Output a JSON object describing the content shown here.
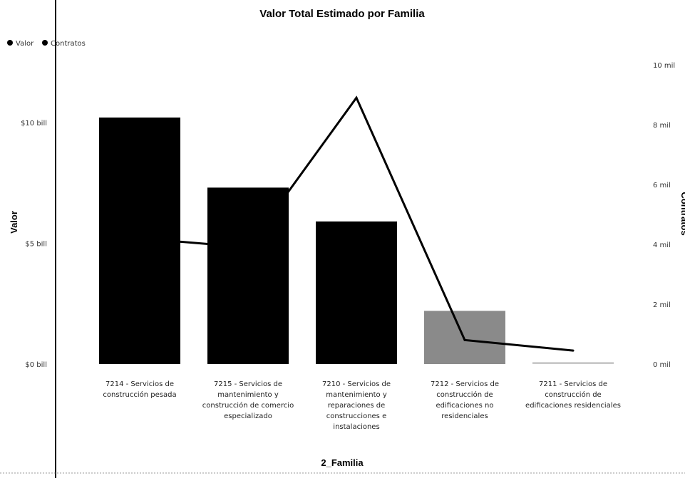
{
  "chart_data": {
    "type": "bar",
    "title": "Valor Total Estimado por Familia",
    "xlabel": "2_Familia",
    "ylabel": "Valor",
    "y2label": "Contratos",
    "legend": {
      "placement": "top-left",
      "items": [
        {
          "label": "Valor",
          "color": "#000000"
        },
        {
          "label": "Contratos",
          "color": "#000000"
        }
      ]
    },
    "categories": [
      [
        "7214 - Servicios de",
        "construcción pesada"
      ],
      [
        "7215 - Servicios de",
        "mantenimiento y",
        "construcción de comercio",
        "especializado"
      ],
      [
        "7210 - Servicios de",
        "mantenimiento y",
        "reparaciones de",
        "construcciones e",
        "instalaciones"
      ],
      [
        "7212 - Servicios de",
        "construcción de",
        "edificaciones no",
        "residenciales"
      ],
      [
        "7211 - Servicios de",
        "construcción de",
        "edificaciones residenciales"
      ]
    ],
    "series": [
      {
        "name": "Valor",
        "type": "bar",
        "axis": "left",
        "values": [
          10.2,
          7.3,
          5.9,
          2.2,
          0.08
        ],
        "colors": [
          "#000000",
          "#000000",
          "#000000",
          "#8a8a8a",
          "#c8c8c8"
        ]
      },
      {
        "name": "Contratos",
        "type": "line",
        "axis": "right",
        "values": [
          4200,
          3900,
          8900,
          800,
          450
        ],
        "color": "#000000"
      }
    ],
    "y_ticks": [
      "$0 bill",
      "$5 bill",
      "$10 bill"
    ],
    "y_tick_values": [
      0,
      5,
      10
    ],
    "ylim": [
      0,
      13
    ],
    "y2_ticks": [
      "0 mil",
      "2 mil",
      "4 mil",
      "6 mil",
      "8 mil",
      "10 mil"
    ],
    "y2_tick_values": [
      0,
      2000,
      4000,
      6000,
      8000,
      10000
    ],
    "y2lim": [
      0,
      10500
    ],
    "grid": false
  }
}
